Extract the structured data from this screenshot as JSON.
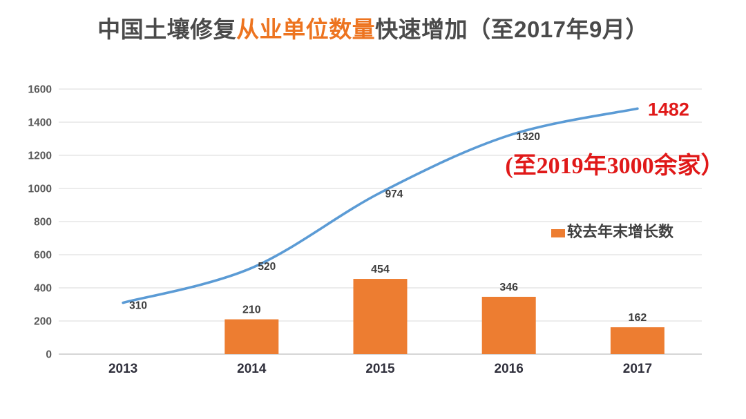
{
  "title": {
    "prefix": "中国土壤修复",
    "highlight": "从业单位数量",
    "suffix": "快速增加（至2017年9月）"
  },
  "annotation": {
    "note": "(至2019年3000余家）",
    "final_value_label": "1482"
  },
  "legend": {
    "label": "较去年末增长数"
  },
  "colors": {
    "line": "#5B9BD5",
    "bar": "#ED7D31",
    "title_text": "#4A4A4A",
    "title_highlight": "#ED7420",
    "red": "#E01919",
    "gridline": "#D9D9D9",
    "axis_line": "#C9C9C9",
    "axis_tick_text": "#595959",
    "category_text": "#30303C",
    "data_label_text": "#3D3D3D"
  },
  "chart_data": {
    "type": "combo",
    "categories": [
      "2013",
      "2014",
      "2015",
      "2016",
      "2017"
    ],
    "series": [
      {
        "name": "",
        "type": "line",
        "color": "#5B9BD5",
        "values": [
          310,
          520,
          974,
          1320,
          1482
        ]
      },
      {
        "name": "较去年末增长数",
        "type": "bar",
        "color": "#ED7D31",
        "values": [
          null,
          210,
          454,
          346,
          162
        ]
      }
    ],
    "ylim": [
      0,
      1600
    ],
    "ytick_step": 200,
    "yticks": [
      0,
      200,
      400,
      600,
      800,
      1000,
      1200,
      1400,
      1600
    ],
    "grid": true,
    "legend_position": "middle-right",
    "highlighted_value": 1482,
    "note": "(至2019年3000余家）",
    "smooth_line": true
  }
}
